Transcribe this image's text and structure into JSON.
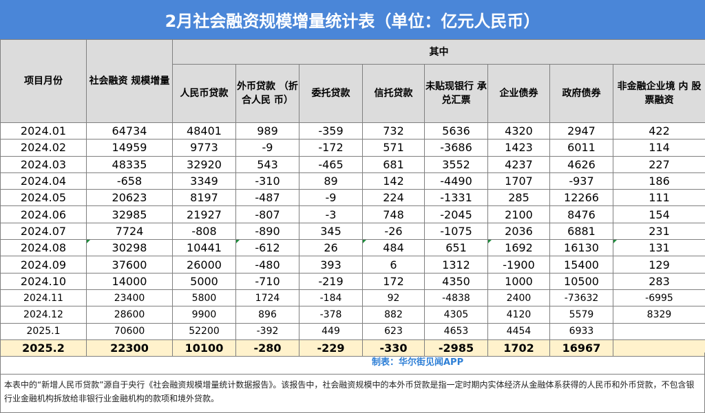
{
  "title": "2月社会融资规模增量统计表（单位：亿元人民币）",
  "header": {
    "col_month": "项目月份",
    "col_total": "社会融资\n规模增量",
    "group_label": "其中",
    "sub_cols": [
      "人民币贷款",
      "外币贷款\n（折合人民\n币）",
      "委托贷款",
      "信托贷款",
      "未贴现银行\n承兑汇票",
      "企业债券",
      "政府债券",
      "非金融企业境\n内\n股票融资"
    ]
  },
  "rows": [
    {
      "month": "2024.01",
      "cells": [
        "64734",
        "48401",
        "989",
        "-359",
        "732",
        "5636",
        "4320",
        "2947",
        "422"
      ]
    },
    {
      "month": "2024.02",
      "cells": [
        "14959",
        "9773",
        "-9",
        "-172",
        "571",
        "-3686",
        "1423",
        "6011",
        "114"
      ]
    },
    {
      "month": "2024.03",
      "cells": [
        "48335",
        "32920",
        "543",
        "-465",
        "681",
        "3552",
        "4237",
        "4626",
        "227"
      ]
    },
    {
      "month": "2024.04",
      "cells": [
        "-658",
        "3349",
        "-310",
        "89",
        "142",
        "-4490",
        "1707",
        "-937",
        "186"
      ]
    },
    {
      "month": "2024.05",
      "cells": [
        "20623",
        "8197",
        "-487",
        "-9",
        "224",
        "-1331",
        "285",
        "12266",
        "111"
      ]
    },
    {
      "month": "2024.06",
      "cells": [
        "32985",
        "21927",
        "-807",
        "-3",
        "748",
        "-2045",
        "2100",
        "8476",
        "154"
      ]
    },
    {
      "month": "2024.07",
      "cells": [
        "7724",
        "-808",
        "-890",
        "345",
        "-26",
        "-1075",
        "2036",
        "6881",
        "231"
      ]
    },
    {
      "month": "2024.08",
      "cells": [
        "30298",
        "10441",
        "-612",
        "26",
        "484",
        "651",
        "1692",
        "16130",
        "131"
      ]
    },
    {
      "month": "2024.09",
      "cells": [
        "37600",
        "26000",
        "-480",
        "393",
        "6",
        "1312",
        "-1900",
        "15400",
        "129"
      ]
    },
    {
      "month": "2024.10",
      "cells": [
        "14000",
        "5000",
        "-710",
        "-219",
        "172",
        "4350",
        "1000",
        "10500",
        "283"
      ]
    },
    {
      "month": "2024.11",
      "cells": [
        "23400",
        "5800",
        "1724",
        "-184",
        "92",
        "-4838",
        "2400",
        "-73632",
        "-6995"
      ]
    },
    {
      "month": "2024.12",
      "cells": [
        "28600",
        "9900",
        "896",
        "-378",
        "882",
        "4305",
        "4120",
        "5579",
        "8329"
      ]
    },
    {
      "month": "2025.1",
      "cells": [
        "70600",
        "52200",
        "-392",
        "449",
        "623",
        "4653",
        "4454",
        "6933",
        ""
      ]
    },
    {
      "month": "2025.2",
      "cells": [
        "22300",
        "10100",
        "-280",
        "-229",
        "-330",
        "-2985",
        "1702",
        "16967",
        ""
      ]
    }
  ],
  "maker": "制表：华尔街见闻APP",
  "footnote": "本表中的“新增人民币贷款”源自于央行《社会融资规模增量统计数据报告》。该报告中，社会融资规模中的本外币贷款是指一定时期内实体经济从金融体系获得的人民币和外币贷款，不包含银行业金融机构拆放给非银行业金融机构的款项和境外贷款。"
}
